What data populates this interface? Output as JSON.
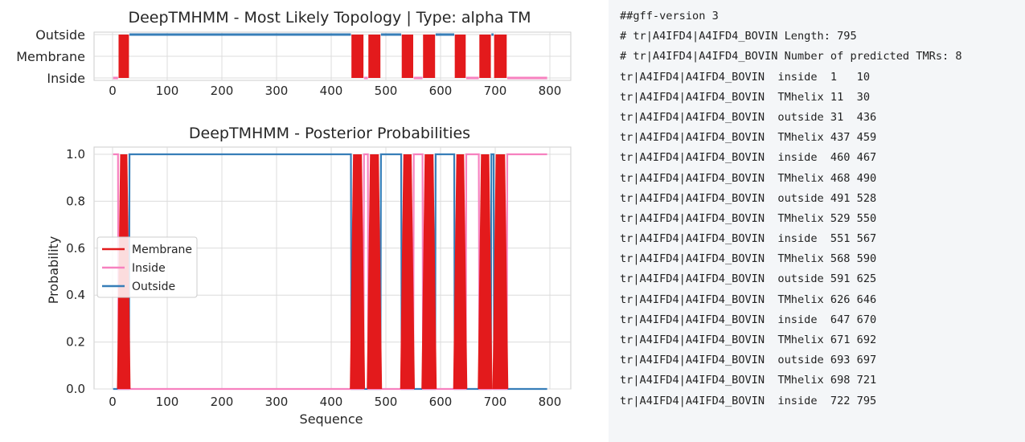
{
  "colors": {
    "membrane": "#e31a1c",
    "inside": "#f781bf",
    "outside": "#377eb8",
    "grid": "#dcdcdc",
    "panel": "#f4f6f8"
  },
  "chart_data": [
    {
      "type": "line",
      "title": "DeepTMHMM - Most Likely Topology | Type: alpha TM",
      "xlabel": "",
      "ylabel": "",
      "xlim": [
        -20,
        815
      ],
      "xticks": [
        "0",
        "100",
        "200",
        "300",
        "400",
        "500",
        "600",
        "700",
        "800"
      ],
      "ycategories": [
        "Inside",
        "Membrane",
        "Outside"
      ],
      "grid": true,
      "segments": [
        {
          "label": "inside",
          "start": 1,
          "end": 10
        },
        {
          "label": "TMhelix",
          "start": 11,
          "end": 30
        },
        {
          "label": "outside",
          "start": 31,
          "end": 436
        },
        {
          "label": "TMhelix",
          "start": 437,
          "end": 459
        },
        {
          "label": "inside",
          "start": 460,
          "end": 467
        },
        {
          "label": "TMhelix",
          "start": 468,
          "end": 490
        },
        {
          "label": "outside",
          "start": 491,
          "end": 528
        },
        {
          "label": "TMhelix",
          "start": 529,
          "end": 550
        },
        {
          "label": "inside",
          "start": 551,
          "end": 567
        },
        {
          "label": "TMhelix",
          "start": 568,
          "end": 590
        },
        {
          "label": "outside",
          "start": 591,
          "end": 625
        },
        {
          "label": "TMhelix",
          "start": 626,
          "end": 646
        },
        {
          "label": "inside",
          "start": 647,
          "end": 670
        },
        {
          "label": "TMhelix",
          "start": 671,
          "end": 692
        },
        {
          "label": "outside",
          "start": 693,
          "end": 697
        },
        {
          "label": "TMhelix",
          "start": 698,
          "end": 721
        },
        {
          "label": "inside",
          "start": 722,
          "end": 795
        }
      ]
    },
    {
      "type": "line",
      "title": "DeepTMHMM - Posterior Probabilities",
      "xlabel": "Sequence",
      "ylabel": "Probability",
      "xlim": [
        -20,
        815
      ],
      "ylim": [
        0,
        1.05
      ],
      "xticks": [
        "0",
        "100",
        "200",
        "300",
        "400",
        "500",
        "600",
        "700",
        "800"
      ],
      "yticks": [
        "0.0",
        "0.2",
        "0.4",
        "0.6",
        "0.8",
        "1.0"
      ],
      "grid": true,
      "legend_position": "center-left",
      "series": [
        {
          "name": "Membrane",
          "color": "#e31a1c"
        },
        {
          "name": "Inside",
          "color": "#f781bf"
        },
        {
          "name": "Outside",
          "color": "#377eb8"
        }
      ],
      "sequence_length": 795
    }
  ],
  "gff": {
    "lines": [
      "##gff-version 3",
      "# tr|A4IFD4|A4IFD4_BOVIN Length: 795",
      "# tr|A4IFD4|A4IFD4_BOVIN Number of predicted TMRs: 8",
      "tr|A4IFD4|A4IFD4_BOVIN  inside  1   10",
      "tr|A4IFD4|A4IFD4_BOVIN  TMhelix 11  30",
      "tr|A4IFD4|A4IFD4_BOVIN  outside 31  436",
      "tr|A4IFD4|A4IFD4_BOVIN  TMhelix 437 459",
      "tr|A4IFD4|A4IFD4_BOVIN  inside  460 467",
      "tr|A4IFD4|A4IFD4_BOVIN  TMhelix 468 490",
      "tr|A4IFD4|A4IFD4_BOVIN  outside 491 528",
      "tr|A4IFD4|A4IFD4_BOVIN  TMhelix 529 550",
      "tr|A4IFD4|A4IFD4_BOVIN  inside  551 567",
      "tr|A4IFD4|A4IFD4_BOVIN  TMhelix 568 590",
      "tr|A4IFD4|A4IFD4_BOVIN  outside 591 625",
      "tr|A4IFD4|A4IFD4_BOVIN  TMhelix 626 646",
      "tr|A4IFD4|A4IFD4_BOVIN  inside  647 670",
      "tr|A4IFD4|A4IFD4_BOVIN  TMhelix 671 692",
      "tr|A4IFD4|A4IFD4_BOVIN  outside 693 697",
      "tr|A4IFD4|A4IFD4_BOVIN  TMhelix 698 721",
      "tr|A4IFD4|A4IFD4_BOVIN  inside  722 795"
    ]
  }
}
